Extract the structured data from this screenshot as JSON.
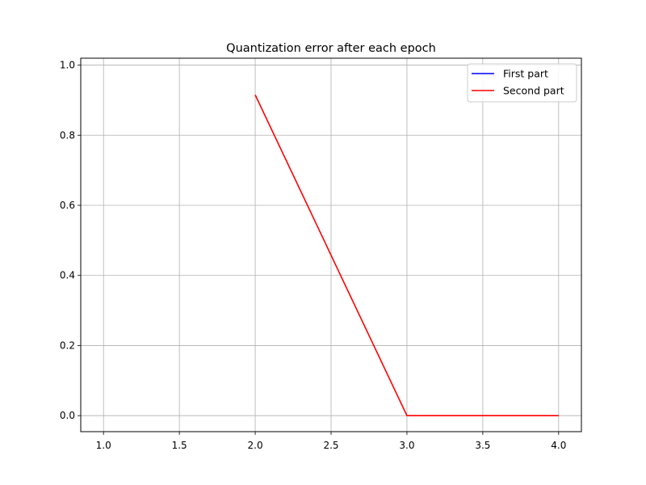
{
  "chart_data": {
    "type": "line",
    "title": "Quantization error after each epoch",
    "xlabel": "",
    "ylabel": "",
    "xlim": [
      0.85,
      4.15
    ],
    "ylim": [
      -0.0457,
      1.0197
    ],
    "xticks": [
      1.0,
      1.5,
      2.0,
      2.5,
      3.0,
      3.5,
      4.0
    ],
    "xtick_labels": [
      "1.0",
      "1.5",
      "2.0",
      "2.5",
      "3.0",
      "3.5",
      "4.0"
    ],
    "yticks": [
      0.0,
      0.2,
      0.4,
      0.6,
      0.8,
      1.0
    ],
    "ytick_labels": [
      "0.0",
      "0.2",
      "0.4",
      "0.6",
      "0.8",
      "1.0"
    ],
    "grid": true,
    "legend_position": "upper right",
    "series": [
      {
        "name": "First part",
        "color": "#0000ff",
        "x": [
          1,
          2,
          3,
          4
        ],
        "y": [
          null,
          null,
          null,
          null
        ]
      },
      {
        "name": "Second part",
        "color": "#ff0000",
        "x": [
          1,
          2,
          3,
          4
        ],
        "y": [
          null,
          0.915,
          0.0,
          0.0
        ]
      }
    ]
  }
}
